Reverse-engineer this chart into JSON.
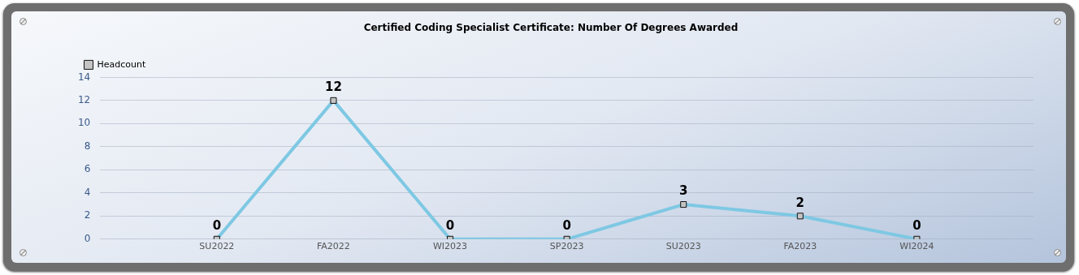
{
  "chart_data": {
    "type": "line",
    "title": "Certified Coding Specialist Certificate: Number Of Degrees Awarded",
    "categories": [
      "SU2022",
      "FA2022",
      "WI2023",
      "SP2023",
      "SU2023",
      "FA2023",
      "WI2024"
    ],
    "series": [
      {
        "name": "Headcount",
        "color": "#7ec8e3",
        "values": [
          0,
          12,
          0,
          0,
          3,
          2,
          0
        ]
      }
    ],
    "ylim": [
      0,
      14
    ],
    "yticks": [
      0,
      2,
      4,
      6,
      8,
      10,
      12,
      14
    ],
    "grid": "y",
    "legend": "top left",
    "marker": "square",
    "line_style": "solid",
    "data_labels": true
  }
}
